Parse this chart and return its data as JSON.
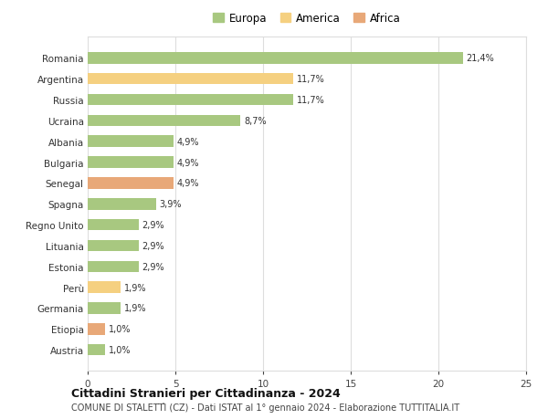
{
  "categories": [
    "Romania",
    "Argentina",
    "Russia",
    "Ucraina",
    "Albania",
    "Bulgaria",
    "Senegal",
    "Spagna",
    "Regno Unito",
    "Lituania",
    "Estonia",
    "Perù",
    "Germania",
    "Etiopia",
    "Austria"
  ],
  "values": [
    21.4,
    11.7,
    11.7,
    8.7,
    4.9,
    4.9,
    4.9,
    3.9,
    2.9,
    2.9,
    2.9,
    1.9,
    1.9,
    1.0,
    1.0
  ],
  "labels": [
    "21,4%",
    "11,7%",
    "11,7%",
    "8,7%",
    "4,9%",
    "4,9%",
    "4,9%",
    "3,9%",
    "2,9%",
    "2,9%",
    "2,9%",
    "1,9%",
    "1,9%",
    "1,0%",
    "1,0%"
  ],
  "colors": [
    "#a8c880",
    "#f5d080",
    "#a8c880",
    "#a8c880",
    "#a8c880",
    "#a8c880",
    "#e8a878",
    "#a8c880",
    "#a8c880",
    "#a8c880",
    "#a8c880",
    "#f5d080",
    "#a8c880",
    "#e8a878",
    "#a8c880"
  ],
  "legend": [
    {
      "label": "Europa",
      "color": "#a8c880"
    },
    {
      "label": "America",
      "color": "#f5d080"
    },
    {
      "label": "Africa",
      "color": "#e8a878"
    }
  ],
  "xlim": [
    0,
    25
  ],
  "xticks": [
    0,
    5,
    10,
    15,
    20,
    25
  ],
  "title": "Cittadini Stranieri per Cittadinanza - 2024",
  "subtitle": "COMUNE DI STALETTÌ (CZ) - Dati ISTAT al 1° gennaio 2024 - Elaborazione TUTTITALIA.IT",
  "background_color": "#ffffff",
  "grid_color": "#dddddd"
}
